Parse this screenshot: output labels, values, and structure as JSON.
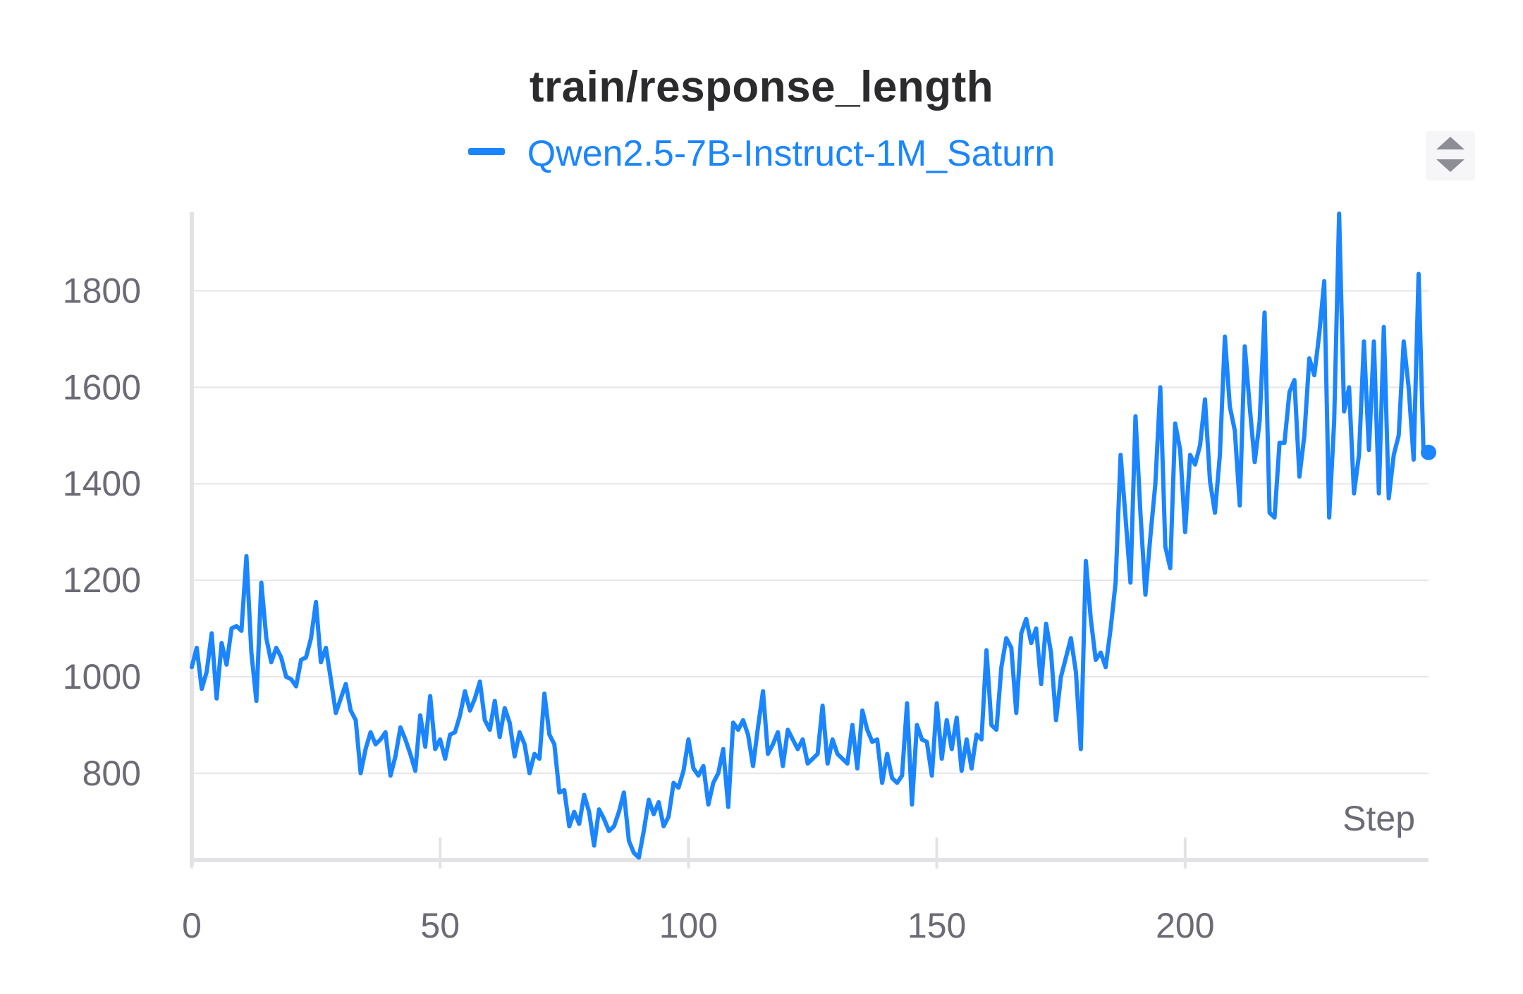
{
  "chart_data": {
    "type": "line",
    "title": "train/response_length",
    "xlabel": "Step",
    "ylabel": "",
    "xlim": [
      0,
      249
    ],
    "ylim": [
      620,
      1960
    ],
    "x_ticks": [
      0,
      50,
      100,
      150,
      200
    ],
    "y_ticks": [
      800,
      1000,
      1200,
      1400,
      1600,
      1800
    ],
    "grid": true,
    "legend": "top-center",
    "colors": {
      "series": "#1a85ff",
      "grid": "#e6e6ea",
      "axis": "#e3e3e6",
      "text": "#6b6b76"
    },
    "series": [
      {
        "name": "Qwen2.5-7B-Instruct-1M_Saturn",
        "x": [
          0,
          1,
          2,
          3,
          4,
          5,
          6,
          7,
          8,
          9,
          10,
          11,
          12,
          13,
          14,
          15,
          16,
          17,
          18,
          19,
          20,
          21,
          22,
          23,
          24,
          25,
          26,
          27,
          28,
          29,
          30,
          31,
          32,
          33,
          34,
          35,
          36,
          37,
          38,
          39,
          40,
          41,
          42,
          43,
          44,
          45,
          46,
          47,
          48,
          49,
          50,
          51,
          52,
          53,
          54,
          55,
          56,
          57,
          58,
          59,
          60,
          61,
          62,
          63,
          64,
          65,
          66,
          67,
          68,
          69,
          70,
          71,
          72,
          73,
          74,
          75,
          76,
          77,
          78,
          79,
          80,
          81,
          82,
          83,
          84,
          85,
          86,
          87,
          88,
          89,
          90,
          91,
          92,
          93,
          94,
          95,
          96,
          97,
          98,
          99,
          100,
          101,
          102,
          103,
          104,
          105,
          106,
          107,
          108,
          109,
          110,
          111,
          112,
          113,
          114,
          115,
          116,
          117,
          118,
          119,
          120,
          121,
          122,
          123,
          124,
          125,
          126,
          127,
          128,
          129,
          130,
          131,
          132,
          133,
          134,
          135,
          136,
          137,
          138,
          139,
          140,
          141,
          142,
          143,
          144,
          145,
          146,
          147,
          148,
          149,
          150,
          151,
          152,
          153,
          154,
          155,
          156,
          157,
          158,
          159,
          160,
          161,
          162,
          163,
          164,
          165,
          166,
          167,
          168,
          169,
          170,
          171,
          172,
          173,
          174,
          175,
          176,
          177,
          178,
          179,
          180,
          181,
          182,
          183,
          184,
          185,
          186,
          187,
          188,
          189,
          190,
          191,
          192,
          193,
          194,
          195,
          196,
          197,
          198,
          199,
          200,
          201,
          202,
          203,
          204,
          205,
          206,
          207,
          208,
          209,
          210,
          211,
          212,
          213,
          214,
          215,
          216,
          217,
          218,
          219,
          220,
          221,
          222,
          223,
          224,
          225,
          226,
          227,
          228,
          229,
          230,
          231,
          232,
          233,
          234,
          235,
          236,
          237,
          238,
          239,
          240,
          241,
          242,
          243,
          244,
          245,
          246,
          247,
          248,
          249
        ],
        "y": [
          1020,
          1060,
          975,
          1010,
          1090,
          955,
          1070,
          1025,
          1100,
          1105,
          1095,
          1250,
          1050,
          950,
          1195,
          1080,
          1030,
          1060,
          1040,
          1000,
          995,
          980,
          1035,
          1040,
          1080,
          1155,
          1030,
          1060,
          995,
          925,
          955,
          985,
          930,
          910,
          800,
          850,
          885,
          860,
          870,
          885,
          795,
          835,
          895,
          870,
          840,
          805,
          920,
          855,
          960,
          850,
          870,
          830,
          880,
          885,
          920,
          970,
          930,
          955,
          990,
          910,
          890,
          950,
          875,
          935,
          905,
          835,
          885,
          860,
          800,
          840,
          830,
          965,
          880,
          860,
          760,
          765,
          690,
          720,
          695,
          755,
          720,
          650,
          725,
          705,
          680,
          690,
          720,
          760,
          660,
          635,
          625,
          680,
          745,
          715,
          740,
          690,
          710,
          780,
          770,
          805,
          870,
          810,
          795,
          815,
          735,
          780,
          800,
          850,
          730,
          905,
          890,
          910,
          880,
          815,
          895,
          970,
          840,
          860,
          885,
          815,
          890,
          870,
          850,
          870,
          820,
          830,
          840,
          940,
          820,
          870,
          840,
          830,
          820,
          900,
          810,
          930,
          890,
          865,
          870,
          780,
          840,
          790,
          780,
          795,
          945,
          735,
          900,
          870,
          865,
          795,
          945,
          830,
          910,
          850,
          915,
          805,
          870,
          810,
          880,
          870,
          1055,
          900,
          890,
          1020,
          1080,
          1060,
          925,
          1090,
          1120,
          1070,
          1100,
          985,
          1110,
          1050,
          910,
          1000,
          1040,
          1080,
          1010,
          850,
          1240,
          1120,
          1035,
          1050,
          1020,
          1100,
          1195,
          1460,
          1330,
          1195,
          1540,
          1340,
          1170,
          1290,
          1400,
          1600,
          1270,
          1225,
          1525,
          1470,
          1300,
          1460,
          1440,
          1480,
          1575,
          1405,
          1340,
          1460,
          1705,
          1560,
          1510,
          1355,
          1685,
          1560,
          1445,
          1530,
          1755,
          1340,
          1330,
          1485,
          1485,
          1590,
          1615,
          1415,
          1500,
          1660,
          1625,
          1710,
          1820,
          1330,
          1530,
          1960,
          1550,
          1600,
          1380,
          1460,
          1695,
          1470,
          1695,
          1380,
          1725,
          1370,
          1460,
          1500,
          1695,
          1600,
          1450,
          1835,
          1460,
          1465
        ]
      }
    ]
  }
}
